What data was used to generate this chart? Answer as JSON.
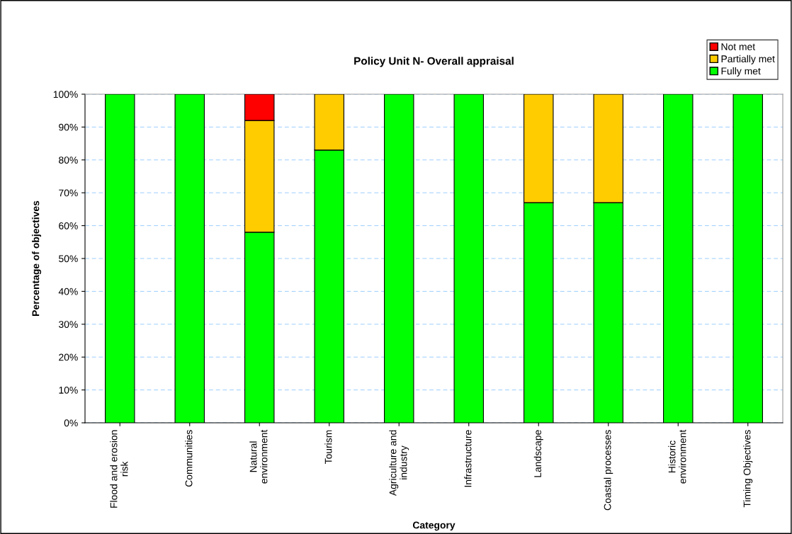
{
  "chart_data": {
    "type": "bar",
    "stacked": true,
    "title": "Policy Unit N- Overall appraisal",
    "xlabel": "Category",
    "ylabel": "Percentage of objectives",
    "categories": [
      "Flood and erosion\nrisk",
      "Communities",
      "Natural\nenvironment",
      "Tourism",
      "Agriculture and\nindustry",
      "Infrastructure",
      "Landscape",
      "Coastal processes",
      "Historic\nenvironment",
      "Timing Objectives"
    ],
    "series": [
      {
        "name": "Fully met",
        "color": "#00ff00",
        "values": [
          100,
          100,
          58,
          83,
          100,
          100,
          67,
          67,
          100,
          100
        ]
      },
      {
        "name": "Partially met",
        "color": "#ffcc00",
        "values": [
          0,
          0,
          34,
          17,
          0,
          0,
          33,
          33,
          0,
          0
        ]
      },
      {
        "name": "Not met",
        "color": "#ff0000",
        "values": [
          0,
          0,
          8,
          0,
          0,
          0,
          0,
          0,
          0,
          0
        ]
      }
    ],
    "ylim": [
      0,
      100
    ],
    "yticks": [
      {
        "value": 0,
        "label": "0%"
      },
      {
        "value": 10,
        "label": "10%"
      },
      {
        "value": 20,
        "label": "20%"
      },
      {
        "value": 30,
        "label": "30%"
      },
      {
        "value": 40,
        "label": "40%"
      },
      {
        "value": 50,
        "label": "50%"
      },
      {
        "value": 60,
        "label": "60%"
      },
      {
        "value": 70,
        "label": "70%"
      },
      {
        "value": 80,
        "label": "80%"
      },
      {
        "value": 90,
        "label": "90%"
      },
      {
        "value": 100,
        "label": "100%"
      }
    ],
    "grid": "y",
    "legend": "top right"
  }
}
